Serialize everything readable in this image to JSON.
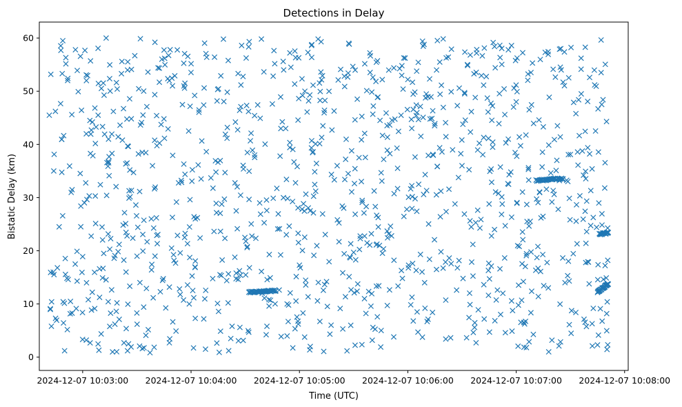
{
  "chart_data": {
    "type": "scatter",
    "title": "Detections in Delay",
    "xlabel": "Time (UTC)",
    "ylabel": "Bistatic Delay (km)",
    "marker": "x",
    "color": "#1f77b4",
    "grid": false,
    "legend": "none",
    "xlim": [
      "2024-12-07 10:02:36",
      "2024-12-07 10:08:02"
    ],
    "ylim": [
      -2.5,
      63
    ],
    "x_ticks": [
      "2024-12-07 10:03:00",
      "2024-12-07 10:04:00",
      "2024-12-07 10:05:00",
      "2024-12-07 10:06:00",
      "2024-12-07 10:07:00",
      "2024-12-07 10:08:00"
    ],
    "y_ticks": [
      0,
      10,
      20,
      30,
      40,
      50,
      60
    ],
    "y_tick_labels": [
      "0",
      "10",
      "20",
      "30",
      "40",
      "50",
      "60"
    ],
    "time_range": [
      "2024-12-07 10:02:41",
      "2024-12-07 10:07:51"
    ],
    "delay_range": [
      0.8,
      59.9
    ],
    "approximate_detection_count": 1250,
    "dense_tracks": [
      {
        "time_start": "2024-12-07 10:04:32",
        "time_end": "2024-12-07 10:04:47",
        "delay_start": 12.2,
        "delay_end": 12.5,
        "count": 40
      },
      {
        "time_start": "2024-12-07 10:07:11",
        "time_end": "2024-12-07 10:07:26",
        "delay_start": 33.2,
        "delay_end": 33.6,
        "count": 35
      },
      {
        "time_start": "2024-12-07 10:07:46",
        "time_end": "2024-12-07 10:07:51",
        "delay_start": 23.1,
        "delay_end": 23.4,
        "count": 20
      },
      {
        "time_start": "2024-12-07 10:07:45",
        "time_end": "2024-12-07 10:07:51",
        "delay_start": 12.2,
        "delay_end": 13.8,
        "count": 30
      }
    ],
    "points": [
      [
        "2024-12-07 10:02:44",
        35.0
      ],
      [
        "2024-12-07 10:02:45",
        7.3
      ],
      [
        "2024-12-07 10:02:46",
        16.8
      ],
      [
        "2024-12-07 10:02:47",
        24.5
      ],
      [
        "2024-12-07 10:02:49",
        59.5
      ],
      [
        "2024-12-07 10:02:50",
        1.2
      ],
      [
        "2024-12-07 10:02:52",
        14.6
      ],
      [
        "2024-12-07 10:02:54",
        45.6
      ],
      [
        "2024-12-07 10:02:56",
        57.8
      ],
      [
        "2024-12-07 10:02:57",
        53.9
      ],
      [
        "2024-12-07 10:02:59",
        28.4
      ],
      [
        "2024-12-07 10:03:00",
        18.9
      ],
      [
        "2024-12-07 10:03:02",
        3.2
      ],
      [
        "2024-12-07 10:03:04",
        44.5
      ],
      [
        "2024-12-07 10:03:07",
        30.3
      ],
      [
        "2024-12-07 10:03:09",
        1.3
      ],
      [
        "2024-12-07 10:03:11",
        14.9
      ],
      [
        "2024-12-07 10:03:13",
        60.0
      ],
      [
        "2024-12-07 10:03:15",
        20.3
      ],
      [
        "2024-12-07 10:03:17",
        46.2
      ],
      [
        "2024-12-07 10:03:19",
        10.2
      ],
      [
        "2024-12-07 10:03:22",
        40.8
      ],
      [
        "2024-12-07 10:03:24",
        16.0
      ],
      [
        "2024-12-07 10:03:27",
        54.1
      ],
      [
        "2024-12-07 10:03:30",
        8.3
      ],
      [
        "2024-12-07 10:03:33",
        38.5
      ],
      [
        "2024-12-07 10:03:35",
        4.1
      ],
      [
        "2024-12-07 10:03:38",
        26.0
      ],
      [
        "2024-12-07 10:03:40",
        59.2
      ],
      [
        "2024-12-07 10:03:43",
        12.3
      ],
      [
        "2024-12-07 10:03:45",
        44.8
      ],
      [
        "2024-12-07 10:03:48",
        2.7
      ],
      [
        "2024-12-07 10:03:51",
        52.9
      ],
      [
        "2024-12-07 10:03:54",
        19.6
      ],
      [
        "2024-12-07 10:03:56",
        36.3
      ],
      [
        "2024-12-07 10:03:59",
        10.0
      ],
      [
        "2024-12-07 10:04:02",
        49.2
      ],
      [
        "2024-12-07 10:04:05",
        22.4
      ],
      [
        "2024-12-07 10:04:08",
        1.5
      ],
      [
        "2024-12-07 10:04:11",
        33.7
      ],
      [
        "2024-12-07 10:04:13",
        56.4
      ],
      [
        "2024-12-07 10:04:16",
        15.5
      ],
      [
        "2024-12-07 10:04:19",
        41.9
      ],
      [
        "2024-12-07 10:04:22",
        3.5
      ],
      [
        "2024-12-07 10:04:25",
        27.5
      ],
      [
        "2024-12-07 10:04:28",
        58.6
      ],
      [
        "2024-12-07 10:04:31",
        20.6
      ],
      [
        "2024-12-07 10:04:34",
        38.9
      ],
      [
        "2024-12-07 10:04:38",
        29.0
      ],
      [
        "2024-12-07 10:04:42",
        5.8
      ],
      [
        "2024-12-07 10:04:45",
        47.6
      ],
      [
        "2024-12-07 10:04:48",
        24.1
      ],
      [
        "2024-12-07 10:04:51",
        55.6
      ],
      [
        "2024-12-07 10:04:54",
        9.8
      ],
      [
        "2024-12-07 10:04:57",
        36.7
      ],
      [
        "2024-12-07 10:05:00",
        17.3
      ],
      [
        "2024-12-07 10:05:03",
        50.0
      ],
      [
        "2024-12-07 10:05:06",
        2.0
      ],
      [
        "2024-12-07 10:05:09",
        31.2
      ],
      [
        "2024-12-07 10:05:12",
        59.3
      ],
      [
        "2024-12-07 10:05:15",
        14.2
      ],
      [
        "2024-12-07 10:05:18",
        42.7
      ],
      [
        "2024-12-07 10:05:21",
        25.8
      ],
      [
        "2024-12-07 10:05:24",
        5.3
      ],
      [
        "2024-12-07 10:05:27",
        53.4
      ],
      [
        "2024-12-07 10:05:30",
        19.7
      ],
      [
        "2024-12-07 10:05:33",
        37.5
      ],
      [
        "2024-12-07 10:05:36",
        11.0
      ],
      [
        "2024-12-07 10:05:39",
        57.2
      ],
      [
        "2024-12-07 10:05:42",
        28.3
      ],
      [
        "2024-12-07 10:05:45",
        1.9
      ],
      [
        "2024-12-07 10:05:48",
        45.9
      ],
      [
        "2024-12-07 10:05:51",
        22.8
      ],
      [
        "2024-12-07 10:05:54",
        39.3
      ],
      [
        "2024-12-07 10:05:57",
        14.8
      ],
      [
        "2024-12-07 10:06:00",
        52.2
      ],
      [
        "2024-12-07 10:06:03",
        6.8
      ],
      [
        "2024-12-07 10:06:06",
        32.5
      ],
      [
        "2024-12-07 10:06:09",
        58.8
      ],
      [
        "2024-12-07 10:06:12",
        18.4
      ],
      [
        "2024-12-07 10:06:15",
        43.9
      ],
      [
        "2024-12-07 10:06:18",
        26.4
      ],
      [
        "2024-12-07 10:06:21",
        3.4
      ],
      [
        "2024-12-07 10:06:24",
        49.9
      ],
      [
        "2024-12-07 10:06:27",
        12.6
      ],
      [
        "2024-12-07 10:06:30",
        36.0
      ],
      [
        "2024-12-07 10:06:33",
        55.0
      ],
      [
        "2024-12-07 10:06:36",
        21.2
      ],
      [
        "2024-12-07 10:06:39",
        8.9
      ],
      [
        "2024-12-07 10:06:42",
        41.3
      ],
      [
        "2024-12-07 10:06:45",
        28.8
      ],
      [
        "2024-12-07 10:06:48",
        58.4
      ],
      [
        "2024-12-07 10:06:51",
        16.6
      ],
      [
        "2024-12-07 10:06:54",
        4.6
      ],
      [
        "2024-12-07 10:06:57",
        34.8
      ],
      [
        "2024-12-07 10:07:00",
        48.0
      ],
      [
        "2024-12-07 10:07:03",
        10.7
      ],
      [
        "2024-12-07 10:07:06",
        25.5
      ],
      [
        "2024-12-07 10:07:09",
        55.3
      ],
      [
        "2024-12-07 10:07:12",
        20.8
      ],
      [
        "2024-12-07 10:07:15",
        43.3
      ],
      [
        "2024-12-07 10:07:18",
        1.0
      ],
      [
        "2024-12-07 10:07:21",
        30.6
      ],
      [
        "2024-12-07 10:07:24",
        57.9
      ],
      [
        "2024-12-07 10:07:27",
        14.0
      ],
      [
        "2024-12-07 10:07:30",
        38.1
      ],
      [
        "2024-12-07 10:07:33",
        8.4
      ],
      [
        "2024-12-07 10:07:36",
        49.5
      ],
      [
        "2024-12-07 10:07:39",
        23.6
      ],
      [
        "2024-12-07 10:07:42",
        35.4
      ],
      [
        "2024-12-07 10:07:45",
        2.3
      ],
      [
        "2024-12-07 10:07:47",
        53.5
      ],
      [
        "2024-12-07 10:07:49",
        31.8
      ],
      [
        "2024-12-07 10:07:50",
        44.3
      ]
    ]
  }
}
